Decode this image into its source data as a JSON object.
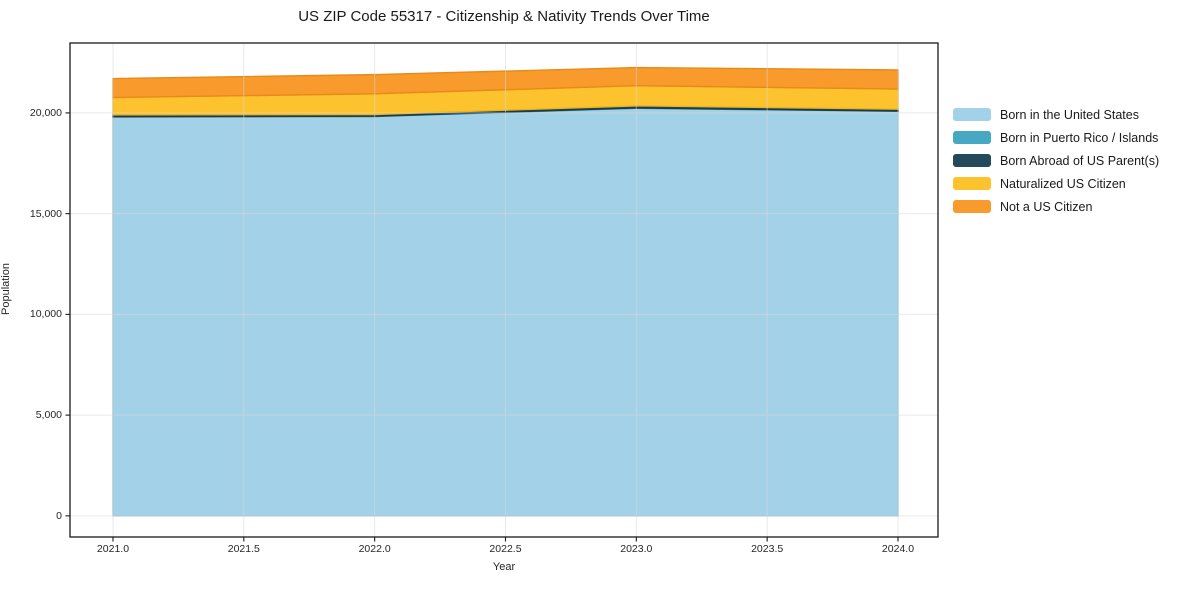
{
  "title": "US ZIP Code 55317 - Citizenship & Nativity Trends Over Time",
  "axes": {
    "xlabel": "Year",
    "ylabel": "Population",
    "x_ticks": [
      {
        "value": 2021.0,
        "label": "2021.0"
      },
      {
        "value": 2021.5,
        "label": "2021.5"
      },
      {
        "value": 2022.0,
        "label": "2022.0"
      },
      {
        "value": 2022.5,
        "label": "2022.5"
      },
      {
        "value": 2023.0,
        "label": "2023.0"
      },
      {
        "value": 2023.5,
        "label": "2023.5"
      },
      {
        "value": 2024.0,
        "label": "2024.0"
      }
    ],
    "y_ticks": [
      {
        "value": 0,
        "label": "0"
      },
      {
        "value": 5000,
        "label": "5,000"
      },
      {
        "value": 10000,
        "label": "10,000"
      },
      {
        "value": 15000,
        "label": "15,000"
      },
      {
        "value": 20000,
        "label": "20,000"
      }
    ]
  },
  "legend": {
    "position": "right-of-plot"
  },
  "chart_data": {
    "type": "area",
    "stacked": true,
    "title": "US ZIP Code 55317 - Citizenship & Nativity Trends Over Time",
    "xlabel": "Year",
    "ylabel": "Population",
    "x": [
      2021,
      2022,
      2023,
      2024
    ],
    "series": [
      {
        "name": "Born in the United States",
        "values": [
          19800,
          19820,
          20230,
          20080
        ],
        "color": "#a3d2e8",
        "edge": "#8bc0dc"
      },
      {
        "name": "Born in Puerto Rico / Islands",
        "values": [
          15,
          15,
          20,
          15
        ],
        "color": "#46a8c2",
        "edge": "#3b94ad"
      },
      {
        "name": "Born Abroad of US Parent(s)",
        "values": [
          90,
          85,
          100,
          90
        ],
        "color": "#24495a",
        "edge": "#1b3947"
      },
      {
        "name": "Naturalized US Citizen",
        "values": [
          860,
          1030,
          1000,
          1000
        ],
        "color": "#fdc32f",
        "edge": "#edb21d"
      },
      {
        "name": "Not a US Citizen",
        "values": [
          940,
          950,
          900,
          950
        ],
        "color": "#f89a2c",
        "edge": "#e88a18"
      }
    ],
    "totals": [
      21705,
      21900,
      22250,
      22135
    ],
    "xlim": [
      2020.8357,
      2024.1529
    ],
    "ylim": [
      -1050,
      23470
    ],
    "grid": true,
    "grid_color": "#d8d8d8",
    "grid_opacity": 0.55,
    "spine_color": "#1a1a1a",
    "legend_position": "right"
  }
}
